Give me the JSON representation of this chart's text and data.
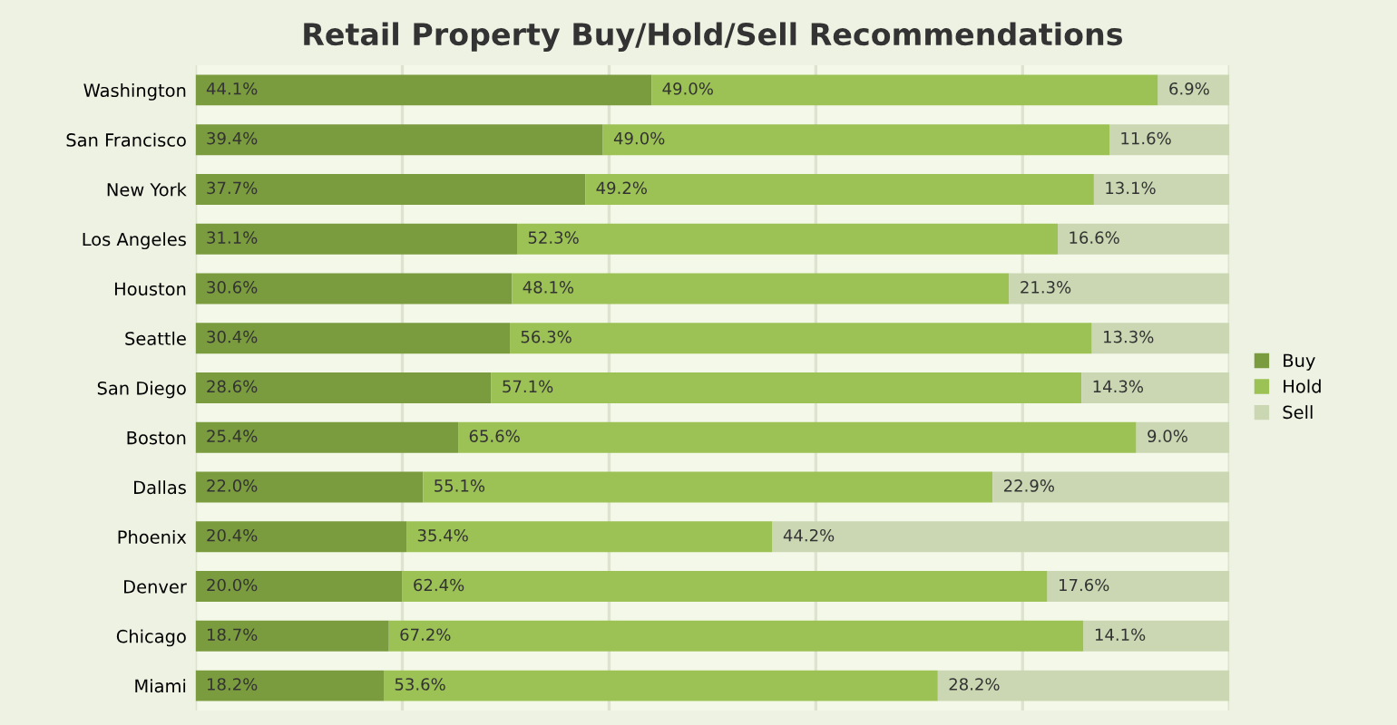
{
  "chart_data": {
    "type": "bar",
    "orientation": "horizontal",
    "stacked": true,
    "title": "Retail Property Buy/Hold/Sell Recommendations",
    "categories": [
      "Washington",
      "San Francisco",
      "New York",
      "Los Angeles",
      "Houston",
      "Seattle",
      "San Diego",
      "Boston",
      "Dallas",
      "Phoenix",
      "Denver",
      "Chicago",
      "Miami"
    ],
    "series": [
      {
        "name": "Buy",
        "color": "#7b9b3f",
        "values": [
          44.1,
          39.4,
          37.7,
          31.1,
          30.6,
          30.4,
          28.6,
          25.4,
          22.0,
          20.4,
          20.0,
          18.7,
          18.2
        ],
        "value_labels": [
          "44.1%",
          "39.4%",
          "37.7%",
          "31.1%",
          "30.6%",
          "30.4%",
          "28.6%",
          "25.4%",
          "22.0%",
          "20.4%",
          "20.0%",
          "18.7%",
          "18.2%"
        ]
      },
      {
        "name": "Hold",
        "color": "#9cc155",
        "values": [
          49.0,
          49.0,
          49.2,
          52.3,
          48.1,
          56.3,
          57.1,
          65.6,
          55.1,
          35.4,
          62.4,
          67.2,
          53.6
        ],
        "value_labels": [
          "49.0%",
          "49.0%",
          "49.2%",
          "52.3%",
          "48.1%",
          "56.3%",
          "57.1%",
          "65.6%",
          "55.1%",
          "35.4%",
          "62.4%",
          "67.2%",
          "53.6%"
        ]
      },
      {
        "name": "Sell",
        "color": "#cad7b2",
        "values": [
          6.9,
          11.6,
          13.1,
          16.6,
          21.3,
          13.3,
          14.3,
          9.0,
          22.9,
          44.2,
          17.6,
          14.1,
          28.2
        ],
        "value_labels": [
          "6.9%",
          "11.6%",
          "13.1%",
          "16.6%",
          "21.3%",
          "13.3%",
          "14.3%",
          "9.0%",
          "22.9%",
          "44.2%",
          "17.6%",
          "14.1%",
          "28.2%"
        ]
      }
    ],
    "xlim": [
      0,
      100
    ],
    "xticks": [
      {
        "value": 0,
        "label": null
      },
      {
        "value": 20,
        "label": null
      },
      {
        "value": 40,
        "label": null
      },
      {
        "value": 60,
        "label": null
      },
      {
        "value": 80,
        "label": null
      },
      {
        "value": 100,
        "label": null
      }
    ],
    "grid": "x",
    "tick_labels": "y",
    "legend": "right"
  }
}
